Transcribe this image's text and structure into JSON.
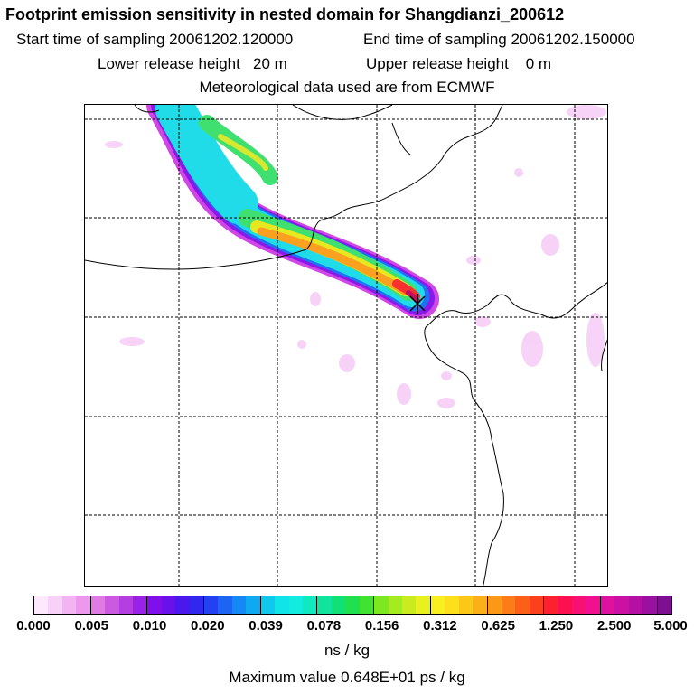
{
  "header": {
    "title": "Footprint emission sensitivity in nested domain for Shangdianzi_200612",
    "start_label": "Start time of sampling",
    "start_value": "20061202.120000",
    "end_label": "End time of sampling",
    "end_value": "20061202.150000",
    "lower_label": "Lower release height",
    "lower_value": "20 m",
    "upper_label": "Upper release height",
    "upper_value": "0 m",
    "met": "Meteorological data used are from ECMWF"
  },
  "colorbar": {
    "tick_labels": [
      "0.000",
      "0.005",
      "0.010",
      "0.020",
      "0.039",
      "0.078",
      "0.156",
      "0.312",
      "0.625",
      "1.250",
      "2.500",
      "5.000"
    ],
    "colors": [
      "#fde8fd",
      "#f8d0f8",
      "#f2b4f2",
      "#ec98ec",
      "#e07ae4",
      "#cc5ae0",
      "#b43ee0",
      "#9a22e6",
      "#7f10ea",
      "#6a10ea",
      "#4a18ee",
      "#3028ee",
      "#2440f0",
      "#1c64f4",
      "#1488f4",
      "#10a8f0",
      "#10c8ec",
      "#10e4e8",
      "#10ece0",
      "#10e8c0",
      "#10e49c",
      "#10e078",
      "#20e050",
      "#40e430",
      "#7ce820",
      "#a4ec20",
      "#c8ec20",
      "#e8f020",
      "#f8f020",
      "#fce01c",
      "#fcc818",
      "#fcb018",
      "#fc9818",
      "#fc7c18",
      "#fc6018",
      "#fc401c",
      "#fc2030",
      "#fc1050",
      "#f81074",
      "#f01090",
      "#e010a0",
      "#cc10a4",
      "#b410a4",
      "#9a10a0",
      "#7c1090"
    ],
    "units": "ns / kg",
    "max_label": "Maximum value",
    "max_value": "0.648E+01 ps / kg"
  },
  "map": {
    "plume_colors": {
      "outer": "#c030e0",
      "magenta": "#e050e0",
      "blue": "#2060f0",
      "cyan": "#20d8e8",
      "green": "#40e070",
      "yellow": "#d8e830",
      "orange": "#fca020",
      "red": "#f83030",
      "dark": "#c01060"
    },
    "station_marker": "station-marker"
  }
}
